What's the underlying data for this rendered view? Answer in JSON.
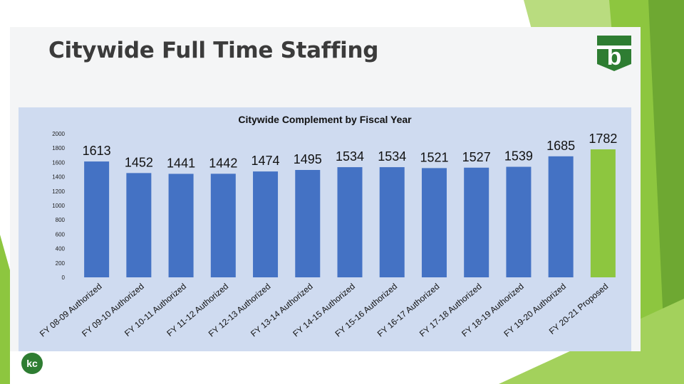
{
  "slide": {
    "title": "Citywide Full Time Staffing"
  },
  "logos": {
    "brand_logo_letter": "b",
    "footer_logo_text": "kc"
  },
  "colors": {
    "bar_authorized": "#4472c4",
    "bar_proposed": "#8dc63f",
    "accent_green": "#8dc63f",
    "title_text": "#3b3b3b",
    "brand_dark_green": "#2e7d32"
  },
  "chart_data": {
    "type": "bar",
    "title": "Citywide Complement by Fiscal Year",
    "categories": [
      "FY 08-09 Authorized",
      "FY 09-10 Authorized",
      "FY 10-11 Authorized",
      "FY 11-12 Authorized",
      "FY 12-13 Authorized",
      "FY 13-14 Authorized",
      "FY 14-15 Authorized",
      "FY 15-16 Authorized",
      "FY 16-17 Authorized",
      "FY 17-18 Authorized",
      "FY 18-19 Authorized",
      "FY 19-20 Authorized",
      "FY 20-21 Proposed"
    ],
    "values": [
      1613,
      1452,
      1441,
      1442,
      1474,
      1495,
      1534,
      1534,
      1521,
      1527,
      1539,
      1685,
      1782
    ],
    "data_labels": [
      "1613",
      "1452",
      "1441",
      "1442",
      "1474",
      "1495",
      "1534",
      "1534",
      "1521",
      "1527",
      "1539",
      "1685",
      "1782"
    ],
    "highlighted_category": "FY 20-21 Proposed",
    "ylim": [
      0,
      2000
    ],
    "yticks": [
      0,
      200,
      400,
      600,
      800,
      1000,
      1200,
      1400,
      1600,
      1800,
      2000
    ],
    "xlabel": "",
    "ylabel": "",
    "grid": false,
    "legend": "none"
  }
}
